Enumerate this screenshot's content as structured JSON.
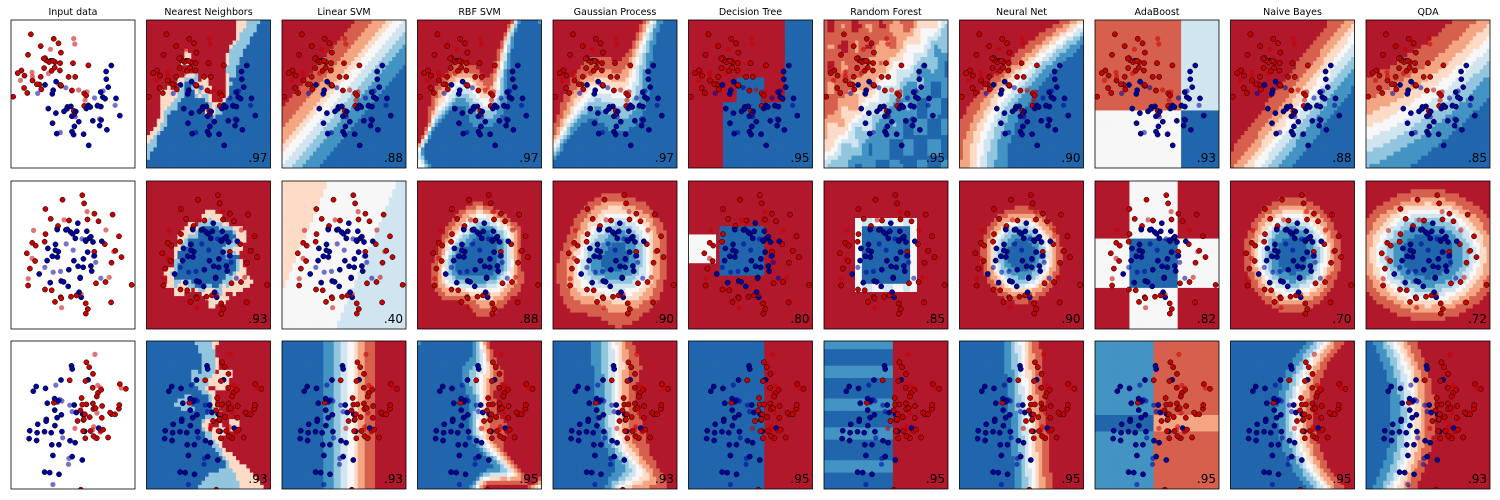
{
  "chart_data": {
    "type": "scatter",
    "layout": "grid of decision-boundary panels, 3 dataset rows by 11 classifier columns",
    "columns": [
      "Input data",
      "Nearest Neighbors",
      "Linear SVM",
      "RBF SVM",
      "Gaussian Process",
      "Decision Tree",
      "Random Forest",
      "Neural Net",
      "AdaBoost",
      "Naive Bayes",
      "QDA"
    ],
    "datasets": [
      {
        "kind": "moons",
        "scores": [
          ".97",
          ".88",
          ".97",
          ".97",
          ".95",
          ".95",
          ".90",
          ".93",
          ".88",
          ".85"
        ]
      },
      {
        "kind": "circles",
        "scores": [
          ".93",
          ".40",
          ".88",
          ".90",
          ".80",
          ".85",
          ".90",
          ".82",
          ".70",
          ".72"
        ]
      },
      {
        "kind": "linear",
        "scores": [
          ".93",
          ".93",
          ".95",
          ".93",
          ".95",
          ".95",
          ".95",
          ".95",
          ".95",
          ".93"
        ]
      }
    ],
    "classes": [
      {
        "class": 0,
        "color": "#c80000"
      },
      {
        "class": 1,
        "color": "#0000a0"
      }
    ],
    "colormap": [
      "#b2182b",
      "#d6604d",
      "#f4a582",
      "#fddbc7",
      "#f7f7f7",
      "#d1e5f0",
      "#92c5de",
      "#4393c3",
      "#2166ac"
    ],
    "axes_ticks": "none",
    "grid": false,
    "legend": "none"
  }
}
